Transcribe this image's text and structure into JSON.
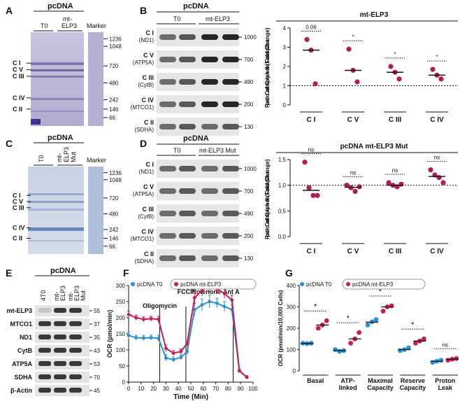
{
  "panels": {
    "A": {
      "letter": "A",
      "header": "pcDNA",
      "lane_labels": [
        "T0",
        "mt-\nELP3"
      ],
      "marker_label": "Marker",
      "complex_labels": [
        "C I",
        "C V",
        "C III",
        "C IV",
        "C II"
      ],
      "marker_values": [
        "1236",
        "1048",
        "720",
        "480",
        "242",
        "146",
        "66"
      ]
    },
    "B": {
      "letter": "B",
      "header": "pcDNA",
      "lane_labels": [
        "T0",
        "mt-ELP3"
      ],
      "blots": [
        {
          "name": "C I",
          "sub": "(ND1)",
          "size": "1000"
        },
        {
          "name": "C V",
          "sub": "(ATP5A)",
          "size": "700"
        },
        {
          "name": "C III",
          "sub": "(CytB)",
          "size": "490"
        },
        {
          "name": "C IV",
          "sub": "(MTCO1)",
          "size": "200"
        },
        {
          "name": "C II",
          "sub": "(SDHA)",
          "size": "130"
        }
      ]
    },
    "C": {
      "letter": "C",
      "header": "pcDNA",
      "lane_labels": [
        "T0",
        "mt-\nELP3\nMut"
      ],
      "marker_label": "Marker",
      "complex_labels": [
        "C I",
        "C V",
        "C III",
        "C IV",
        "C II"
      ],
      "marker_values": [
        "1236",
        "1048",
        "720",
        "480",
        "242",
        "146",
        "66"
      ]
    },
    "D": {
      "letter": "D",
      "header": "pcDNA",
      "lane_labels": [
        "T0",
        "mt-ELP3 Mut"
      ],
      "blots": [
        {
          "name": "C I",
          "sub": "(ND1)",
          "size": "1000"
        },
        {
          "name": "C V",
          "sub": "(ATP5A)",
          "size": "700"
        },
        {
          "name": "C III",
          "sub": "(CytB)",
          "size": "490"
        },
        {
          "name": "C IV",
          "sub": "(MTCO1)",
          "size": "200"
        },
        {
          "name": "C II",
          "sub": "(SDHA)",
          "size": "130"
        }
      ]
    },
    "E": {
      "letter": "E",
      "header": "pcDNA",
      "lane_labels": [
        "4T0",
        "mt-\nELP3",
        "mt-\nELP3\nMut"
      ],
      "rows": [
        {
          "label": "mt-ELP3",
          "size": "55"
        },
        {
          "label": "MTCO1",
          "size": "37"
        },
        {
          "label": "ND1",
          "size": "35"
        },
        {
          "label": "CytB",
          "size": "43"
        },
        {
          "label": "ATP5A",
          "size": "53"
        },
        {
          "label": "SDHA",
          "size": "70"
        },
        {
          "label": "β-Actin",
          "size": "45"
        }
      ]
    },
    "F": {
      "letter": "F"
    },
    "G": {
      "letter": "G"
    }
  },
  "chart_data": [
    {
      "id": "B-scatter",
      "type": "scatter",
      "title": "mt-ELP3",
      "ylabel": "Ratio of Oxphos Complex per Complex II (Fold Change)",
      "ylim": [
        0,
        4
      ],
      "yticks": [
        "0",
        "1",
        "2",
        "3",
        "4"
      ],
      "categories": [
        "C I",
        "C V",
        "C III",
        "C IV"
      ],
      "points": [
        [
          3.4,
          2.85,
          1.1
        ],
        [
          2.9,
          1.8,
          1.2
        ],
        [
          2.0,
          1.7,
          1.35
        ],
        [
          1.85,
          1.55,
          1.35
        ]
      ],
      "means": [
        2.85,
        1.8,
        1.7,
        1.55
      ],
      "significance": [
        "0.06",
        "*",
        "*",
        "*"
      ],
      "reference_line": 1,
      "color": "#b01c54"
    },
    {
      "id": "D-scatter",
      "type": "scatter",
      "title": "pcDNA mt-ELP3 Mut",
      "ylabel": "Ratio of Oxphos Complex per Complex II (Fold Change)",
      "ylim": [
        0,
        1.5
      ],
      "yticks": [
        "0.0",
        "0.5",
        "1.0",
        "1.5"
      ],
      "categories": [
        "C I",
        "C V",
        "C III",
        "C IV"
      ],
      "points": [
        [
          1.45,
          0.95,
          0.8,
          0.8
        ],
        [
          1.0,
          0.95,
          0.88,
          0.97
        ],
        [
          1.05,
          1.0,
          0.97,
          1.02
        ],
        [
          1.3,
          1.2,
          1.15,
          1.05
        ]
      ],
      "means": [
        0.9,
        0.96,
        1.0,
        1.17
      ],
      "significance": [
        "ns",
        "ns",
        "ns",
        "ns"
      ],
      "reference_line": 1,
      "color": "#b01c54"
    },
    {
      "id": "F-line",
      "type": "line",
      "xlabel": "Time (Min)",
      "ylabel": "OCR (pmol/min)",
      "xlim": [
        0,
        100
      ],
      "ylim": [
        0,
        300
      ],
      "xticks": [
        "0",
        "10",
        "20",
        "30",
        "40",
        "50",
        "60",
        "70",
        "80",
        "90",
        "100"
      ],
      "yticks": [
        "0",
        "50",
        "100",
        "150",
        "200",
        "250",
        "300"
      ],
      "x": [
        0,
        6,
        12,
        18,
        24,
        30,
        36,
        42,
        47,
        53,
        59,
        65,
        71,
        77,
        83,
        89,
        95
      ],
      "series": [
        {
          "name": "pcDNA T0",
          "color": "#2b8fd6",
          "values": [
            145,
            138,
            137,
            138,
            136,
            75,
            70,
            77,
            95,
            225,
            240,
            250,
            245,
            235,
            225,
            35,
            15
          ]
        },
        {
          "name": "pcDNA mt-ELP3",
          "color": "#c81d50",
          "values": [
            210,
            200,
            195,
            197,
            195,
            105,
            90,
            95,
            120,
            262,
            285,
            300,
            290,
            275,
            255,
            35,
            15
          ]
        }
      ],
      "error": [
        10,
        8,
        8,
        8,
        10,
        10,
        8,
        8,
        10,
        20,
        18,
        20,
        15,
        15,
        15,
        5,
        5
      ],
      "injections": [
        {
          "label": "Oligomycin",
          "x": 25
        },
        {
          "label": "FCCP",
          "x": 46
        },
        {
          "label": "Rotenone-Ant A",
          "x": 84
        }
      ],
      "legend": "top-left"
    },
    {
      "id": "G-dot",
      "type": "scatter",
      "ylabel": "OCR (pmol/min/10,000 Cells)",
      "ylim": [
        0,
        400
      ],
      "yticks": [
        "0",
        "100",
        "200",
        "300",
        "400"
      ],
      "categories": [
        "Basal",
        "ATP-\nlinked",
        "Maximal\nCapacity",
        "Reserve\nCapacity",
        "Proton\nLeak"
      ],
      "series": [
        {
          "name": "pcDNA T0",
          "color": "#2b8fd6",
          "points": [
            [
              130,
              128,
              130
            ],
            [
              100,
              92,
              95
            ],
            [
              215,
              230,
              240
            ],
            [
              95,
              100,
              108
            ],
            [
              40,
              45,
              50
            ]
          ],
          "means": [
            128,
            95,
            228,
            100,
            45
          ]
        },
        {
          "name": "pcDNA mt-ELP3",
          "color": "#c81d50",
          "points": [
            [
              200,
              215,
              235
            ],
            [
              130,
              150,
              180
            ],
            [
              280,
              300,
              305
            ],
            [
              130,
              140,
              150
            ],
            [
              50,
              55,
              58
            ]
          ],
          "means": [
            215,
            150,
            300,
            140,
            55
          ]
        }
      ],
      "significance": [
        "*",
        "*",
        "*",
        "*",
        "ns"
      ],
      "legend": "top-left"
    }
  ]
}
